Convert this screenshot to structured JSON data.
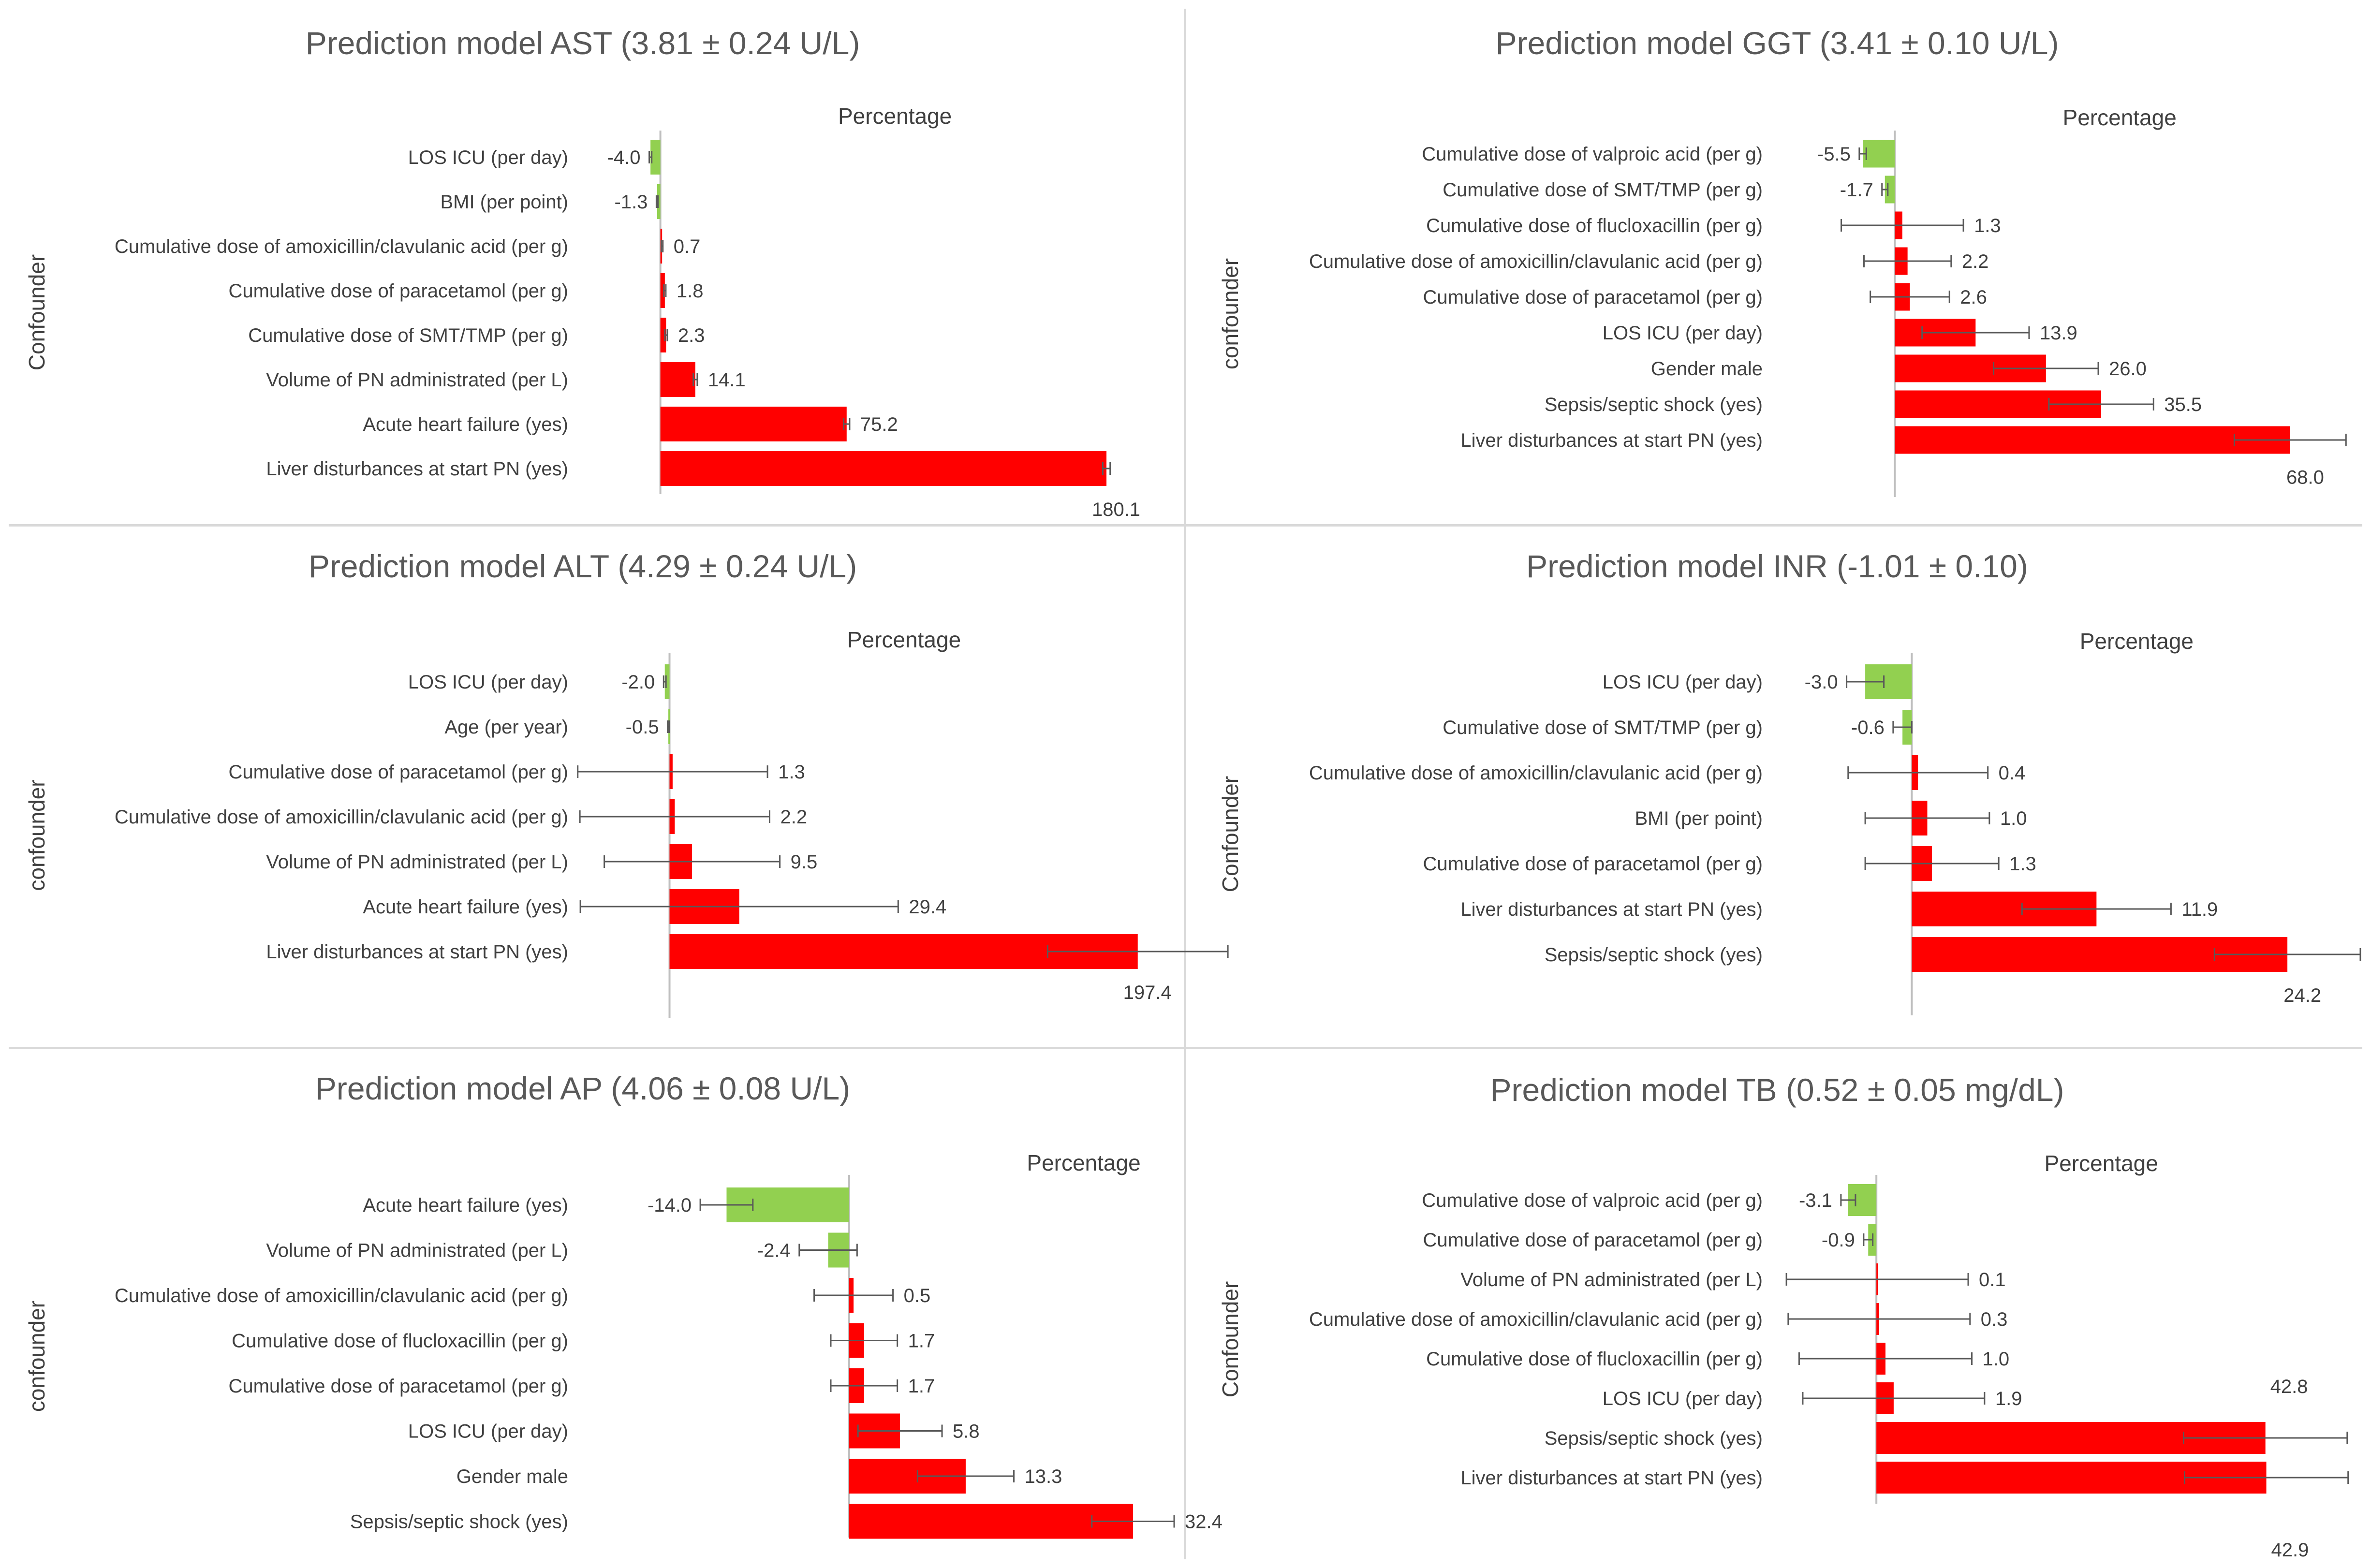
{
  "colors": {
    "negative": "#92d050",
    "positive": "#ff0000",
    "axis": "#bfbfbf",
    "text": "#404040",
    "title": "#595959",
    "error_bar": "#595959"
  },
  "chart_data": [
    {
      "type": "bar",
      "title": "Prediction model AST (3.81 ± 0.24 U/L)",
      "xlabel": "Percentage",
      "ylabel": "Confounder",
      "xlim": [
        -5,
        200
      ],
      "categories": [
        "LOS ICU (per day)",
        "BMI (per point)",
        "Cumulative dose of amoxicillin/clavulanic acid (per g)",
        "Cumulative dose of paracetamol (per g)",
        "Cumulative dose of SMT/TMP (per g)",
        "Volume of PN administrated (per L)",
        "Acute heart failure (yes)",
        "Liver disturbances at start PN (yes)"
      ],
      "values": [
        -4.0,
        -1.3,
        0.7,
        1.8,
        2.3,
        14.1,
        75.2,
        180.1
      ],
      "labels": [
        "-4.0",
        "-1.3",
        "0.7",
        "1.8",
        "2.3",
        "14.1",
        "75.2",
        "180.1"
      ],
      "error": [
        0.5,
        0.3,
        0.3,
        0.4,
        0.5,
        0.8,
        1.2,
        1.5
      ]
    },
    {
      "type": "bar",
      "title": "Prediction model GGT (3.41 ± 0.10 U/L)",
      "xlabel": "Percentage",
      "ylabel": "confounder",
      "xlim": [
        -8,
        75
      ],
      "categories": [
        "Cumulative dose of valproic acid (per g)",
        "Cumulative dose of SMT/TMP (per g)",
        "Cumulative dose of flucloxacillin (per g)",
        "Cumulative dose of amoxicillin/clavulanic acid (per g)",
        "Cumulative dose of paracetamol (per g)",
        "LOS ICU (per day)",
        "Gender male",
        "Sepsis/septic shock (yes)",
        "Liver disturbances at start PN (yes)"
      ],
      "values": [
        -5.5,
        -1.7,
        1.3,
        2.2,
        2.6,
        13.9,
        26.0,
        35.5,
        68.0
      ],
      "labels": [
        "-5.5",
        "-1.7",
        "1.3",
        "2.2",
        "2.6",
        "13.9",
        "26.0",
        "35.5",
        "68.0"
      ],
      "error": [
        0.6,
        0.5,
        10.5,
        7.5,
        6.8,
        9.2,
        9.0,
        9.0,
        9.6
      ]
    },
    {
      "type": "bar",
      "title": "Prediction model ALT (4.29 ± 0.24 U/L)",
      "xlabel": "Percentage",
      "ylabel": "confounder",
      "xlim": [
        -5,
        205
      ],
      "categories": [
        "LOS ICU (per day)",
        "Age (per year)",
        "Cumulative dose of paracetamol (per g)",
        "Cumulative dose of amoxicillin/clavulanic acid (per g)",
        "Volume of PN administrated (per L)",
        "Acute heart failure (yes)",
        "Liver disturbances at start PN (yes)"
      ],
      "values": [
        -2.0,
        -0.5,
        1.3,
        2.2,
        9.5,
        29.4,
        197.4
      ],
      "labels": [
        "-2.0",
        "-0.5",
        "1.3",
        "2.2",
        "9.5",
        "29.4",
        "197.4"
      ],
      "error": [
        0.5,
        0.3,
        40.0,
        40.0,
        37.0,
        67.0,
        38.0
      ]
    },
    {
      "type": "bar",
      "title": "Prediction model INR (-1.01 ± 0.10)",
      "xlabel": "Percentage",
      "ylabel": "Confounder",
      "xlim": [
        -4,
        27
      ],
      "categories": [
        "LOS ICU (per day)",
        "Cumulative dose of SMT/TMP (per g)",
        "Cumulative dose of amoxicillin/clavulanic acid (per g)",
        "BMI (per point)",
        "Cumulative dose of paracetamol (per g)",
        "Liver disturbances at start PN (yes)",
        "Sepsis/septic shock (yes)"
      ],
      "values": [
        -3.0,
        -0.6,
        0.4,
        1.0,
        1.3,
        11.9,
        24.2
      ],
      "labels": [
        "-3.0",
        "-0.6",
        "0.4",
        "1.0",
        "1.3",
        "11.9",
        "24.2"
      ],
      "error": [
        1.2,
        0.6,
        4.5,
        4.0,
        4.3,
        4.8,
        4.7
      ]
    },
    {
      "type": "bar",
      "title": "Prediction model AP (4.06 ± 0.08 U/L)",
      "xlabel": "Percentage",
      "ylabel": "confounder",
      "xlim": [
        -18,
        35
      ],
      "categories": [
        "Acute heart failure (yes)",
        "Volume of PN administrated (per L)",
        "Cumulative dose of amoxicillin/clavulanic acid (per g)",
        "Cumulative dose of flucloxacillin (per g)",
        "Cumulative dose of paracetamol (per g)",
        "LOS ICU (per day)",
        "Gender male",
        "Sepsis/septic shock (yes)"
      ],
      "values": [
        -14.0,
        -2.4,
        0.5,
        1.7,
        1.7,
        5.8,
        13.3,
        32.4
      ],
      "labels": [
        "-14.0",
        "-2.4",
        "0.5",
        "1.7",
        "1.7",
        "5.8",
        "13.3",
        "32.4"
      ],
      "error": [
        3.0,
        3.3,
        4.5,
        3.8,
        3.8,
        4.8,
        5.5,
        4.7
      ]
    },
    {
      "type": "bar",
      "title": "Prediction model TB (0.52 ± 0.05 mg/dL)",
      "xlabel": "Percentage",
      "ylabel": "Confounder",
      "xlim": [
        -4,
        50
      ],
      "categories": [
        "Cumulative dose of valproic acid (per g)",
        "Cumulative dose of paracetamol (per g)",
        "Volume of PN administrated (per L)",
        "Cumulative dose of amoxicillin/clavulanic acid (per g)",
        "Cumulative dose of flucloxacillin (per g)",
        "LOS ICU (per day)",
        "Sepsis/septic shock (yes)",
        "Liver disturbances at start PN (yes)"
      ],
      "values": [
        -3.1,
        -0.9,
        0.1,
        0.3,
        1.0,
        1.9,
        42.8,
        42.9
      ],
      "labels": [
        "-3.1",
        "-0.9",
        "0.1",
        "0.3",
        "1.0",
        "1.9",
        "42.8",
        "42.9"
      ],
      "error": [
        0.8,
        0.5,
        10.0,
        10.0,
        9.5,
        10.0,
        9.0,
        9.0
      ]
    }
  ]
}
